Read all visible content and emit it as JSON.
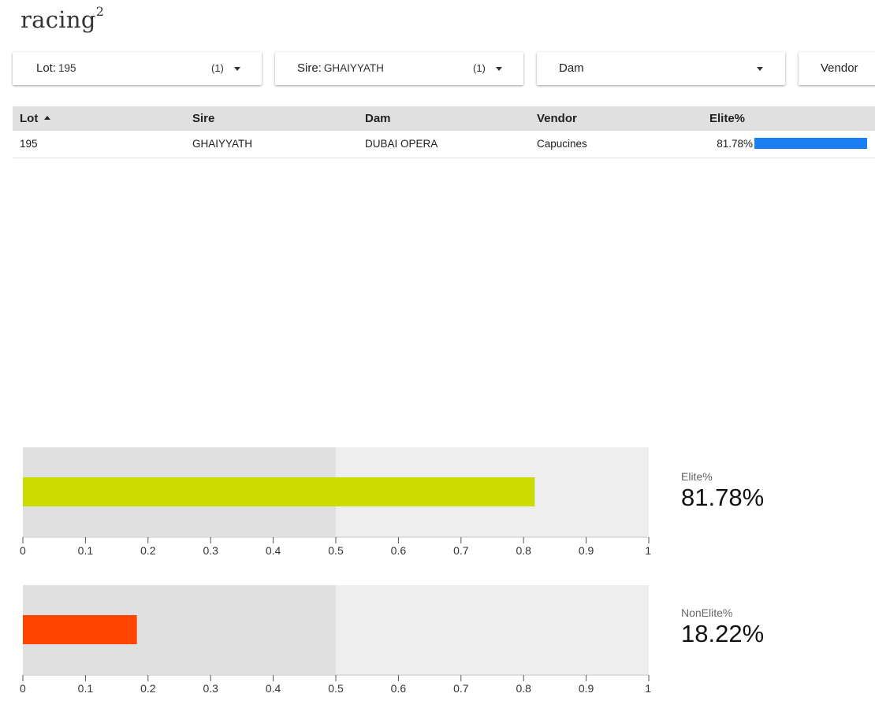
{
  "app": {
    "title": "racing",
    "title_sup": "2"
  },
  "filters": [
    {
      "label": "Lot",
      "value": "195",
      "count": "(1)"
    },
    {
      "label": "Sire",
      "value": "GHAIYYATH",
      "count": "(1)"
    },
    {
      "label": "Dam",
      "value": "",
      "count": ""
    },
    {
      "label": "Vendor",
      "value": "",
      "count": ""
    }
  ],
  "table": {
    "columns": [
      "Lot",
      "Sire",
      "Dam",
      "Vendor",
      "Elite%"
    ],
    "rows": [
      {
        "lot": "195",
        "sire": "GHAIYYATH",
        "dam": "DUBAI OPERA",
        "vendor": "Capucines",
        "elite": "81.78%",
        "elite_value": 0.8178
      }
    ],
    "bar_color": "#1a7ff5"
  },
  "chart_data": [
    {
      "type": "bullet",
      "title": "Elite%",
      "value": 0.8178,
      "value_label": "81.78%",
      "ranges": [
        0.5,
        1
      ],
      "xlim": [
        0,
        1
      ],
      "ticks": [
        "0",
        "0.1",
        "0.2",
        "0.3",
        "0.4",
        "0.5",
        "0.6",
        "0.7",
        "0.8",
        "0.9",
        "1"
      ],
      "bar_color": "#cddc00"
    },
    {
      "type": "bullet",
      "title": "NonElite%",
      "value": 0.1822,
      "value_label": "18.22%",
      "ranges": [
        0.5,
        1
      ],
      "xlim": [
        0,
        1
      ],
      "ticks": [
        "0",
        "0.1",
        "0.2",
        "0.3",
        "0.4",
        "0.5",
        "0.6",
        "0.7",
        "0.8",
        "0.9",
        "1"
      ],
      "bar_color": "#ff4500"
    }
  ]
}
